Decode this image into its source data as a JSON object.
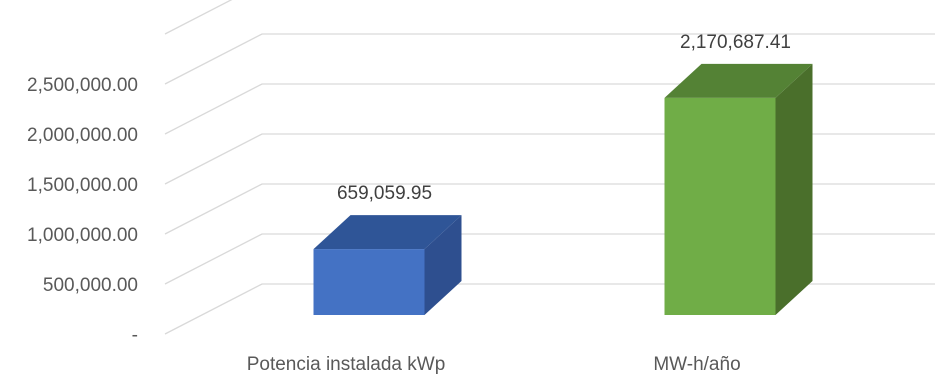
{
  "chart_data": {
    "type": "bar",
    "title": "",
    "xlabel": "",
    "ylabel": "",
    "categories": [
      "Potencia instalada kWp",
      "MW-h/año"
    ],
    "values": [
      659059.95,
      2170687.41
    ],
    "data_labels": [
      "659,059.95",
      "2,170,687.41"
    ],
    "ylim": [
      0,
      3000000
    ],
    "ytick_values": [
      0,
      500000,
      1000000,
      1500000,
      2000000,
      2500000,
      3000000
    ],
    "ytick_labels": [
      "-",
      "500,000.00",
      "1,000,000.00",
      "1,500,000.00",
      "2,000,000.00",
      "2,500,000.00",
      ""
    ],
    "grid": true,
    "legend": "none",
    "style": "3d-column",
    "colors": {
      "bars": [
        "#4472c4",
        "#70ad47"
      ],
      "bar_tops": [
        "#2f5597",
        "#548235"
      ],
      "bar_sides": [
        "#2e4f8f",
        "#4a6f2b"
      ],
      "grid": "#d9d9d9"
    }
  }
}
